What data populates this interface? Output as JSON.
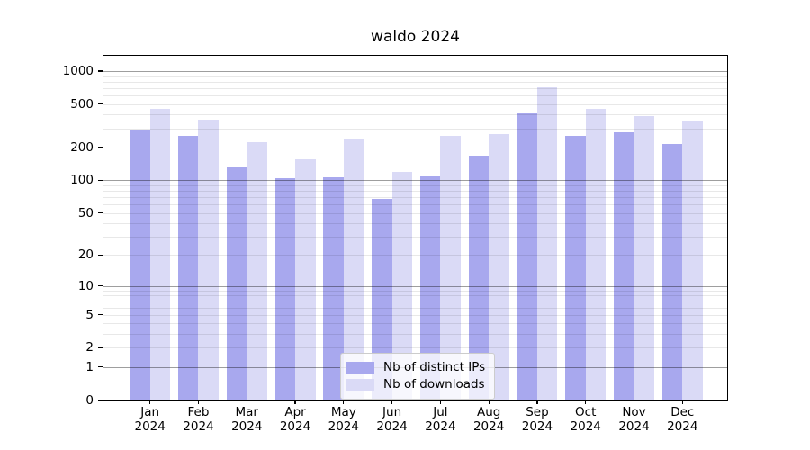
{
  "chart_data": {
    "type": "bar",
    "title": "waldo 2024",
    "yscale": "log1p",
    "grid": true,
    "legend_position": "lower center",
    "ylim": [
      0,
      1400
    ],
    "y_ticks": [
      1000,
      500,
      200,
      100,
      50,
      20,
      10,
      5,
      2,
      1,
      0
    ],
    "categories": [
      "Jan 2024",
      "Feb 2024",
      "Mar 2024",
      "Apr 2024",
      "May 2024",
      "Jun 2024",
      "Jul 2024",
      "Aug 2024",
      "Sep 2024",
      "Oct 2024",
      "Nov 2024",
      "Dec 2024"
    ],
    "series": [
      {
        "name": "Nb of distinct IPs",
        "color": "#a8a8ee",
        "values": [
          287,
          258,
          131,
          104,
          106,
          68,
          108,
          169,
          412,
          257,
          278,
          214
        ]
      },
      {
        "name": "Nb of downloads",
        "color": "#dadaf6",
        "values": [
          455,
          358,
          223,
          155,
          236,
          120,
          257,
          266,
          708,
          452,
          389,
          354
        ]
      }
    ]
  },
  "colors": {
    "background": "#ffffff",
    "bar_distinct_ips": "#a8a8ee",
    "bar_downloads": "#dadaf6",
    "grid_major": "rgba(0,0,0,0.38)",
    "grid_minor": "rgba(0,0,0,0.09)",
    "spine": "#000000",
    "legend_border": "#cccccc"
  }
}
